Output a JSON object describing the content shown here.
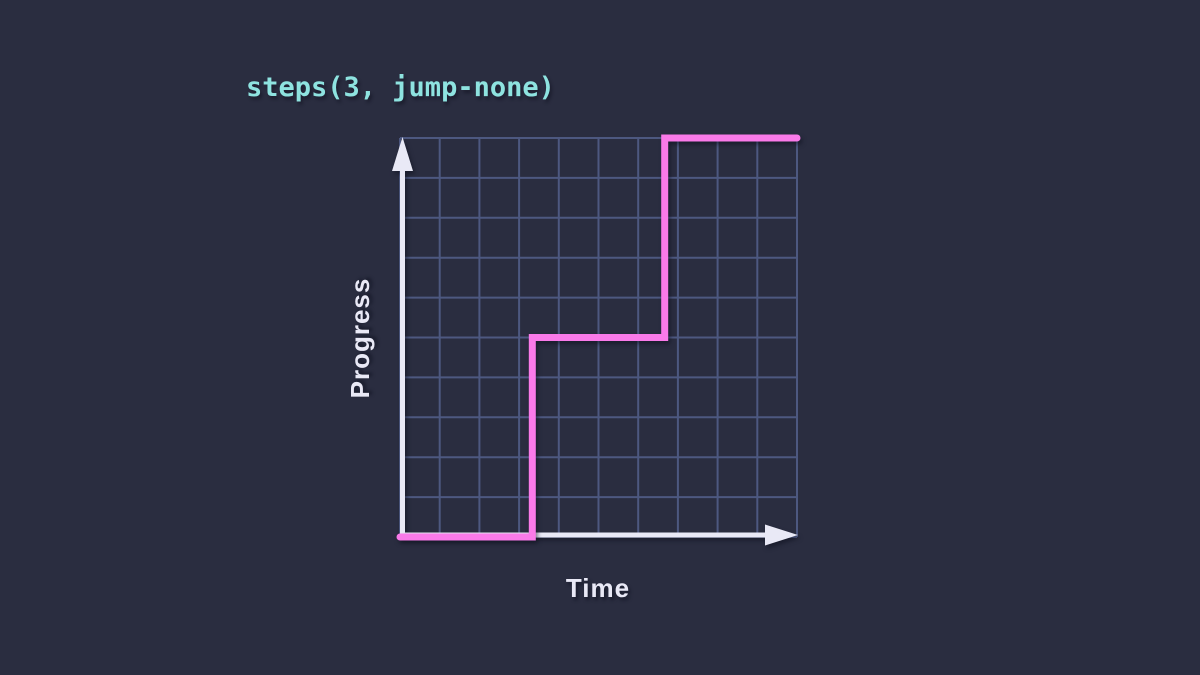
{
  "title": {
    "text": "steps(3, jump-none)"
  },
  "chart": {
    "x_axis_label": "Time",
    "y_axis_label": "Progress"
  },
  "colors": {
    "background": "#2a2d40",
    "title_color": "#8ee3e0",
    "grid_color": "#4d5880",
    "axis_color": "#e9e9f6",
    "step_line_color": "#fa7ae9",
    "label_color": "#e9e9f6"
  },
  "chart_data": {
    "type": "line",
    "subtype": "step-function",
    "title": "steps(3, jump-none)",
    "xlabel": "Time",
    "ylabel": "Progress",
    "xlim": [
      0,
      1
    ],
    "ylim": [
      0,
      1
    ],
    "grid": true,
    "grid_cols": 10,
    "grid_rows": 10,
    "legend": "none",
    "step_count": 3,
    "jump_term": "jump-none",
    "points": [
      [
        0,
        0
      ],
      [
        0.3333,
        0
      ],
      [
        0.3333,
        0.5
      ],
      [
        0.6667,
        0.5
      ],
      [
        0.6667,
        1
      ],
      [
        1,
        1
      ]
    ],
    "series": [
      {
        "name": "steps(3, jump-none)",
        "x": [
          0,
          0.3333,
          0.3333,
          0.6667,
          0.6667,
          1
        ],
        "y": [
          0,
          0,
          0.5,
          0.5,
          1,
          1
        ]
      }
    ]
  }
}
